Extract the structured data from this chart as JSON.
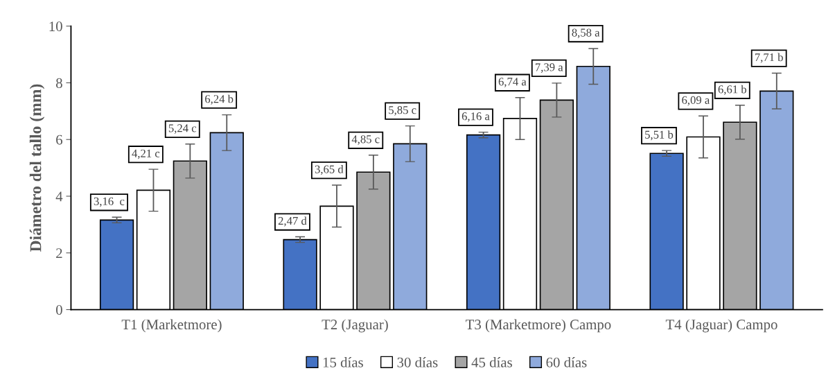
{
  "chart_data": {
    "type": "bar",
    "ylabel": "Diámetro del tallo (mm)",
    "categories": [
      "T1 (Marketmore)",
      "T2 (Jaguar)",
      "T3 (Marketmore) Campo",
      "T4 (Jaguar) Campo"
    ],
    "series": [
      {
        "name": "15 días",
        "color": "#4472c4",
        "values": [
          3.16,
          2.47,
          6.16,
          5.51
        ],
        "errors": [
          0.1,
          0.1,
          0.1,
          0.1
        ],
        "value_labels": [
          "3,16  c",
          "2,47 d",
          "6,16 a",
          "5,51 b"
        ]
      },
      {
        "name": "30 días",
        "color": "#ffffff",
        "values": [
          4.21,
          3.65,
          6.74,
          6.09
        ],
        "errors": [
          0.74,
          0.74,
          0.74,
          0.74
        ],
        "value_labels": [
          "4,21 c",
          "3,65 d",
          "6,74 a",
          "6,09 a"
        ]
      },
      {
        "name": "45 días",
        "color": "#a5a5a5",
        "values": [
          5.24,
          4.85,
          7.39,
          6.61
        ],
        "errors": [
          0.6,
          0.6,
          0.6,
          0.6
        ],
        "value_labels": [
          "5,24 c",
          "4,85 c",
          "7,39 a",
          "6,61 b"
        ]
      },
      {
        "name": "60 días",
        "color": "#8faadc",
        "values": [
          6.24,
          5.85,
          8.58,
          7.71
        ],
        "errors": [
          0.63,
          0.63,
          0.63,
          0.63
        ],
        "value_labels": [
          "6,24 b",
          "5,85 c",
          "8,58 a",
          "7,71 b"
        ]
      }
    ],
    "ylim": [
      0,
      10
    ],
    "yticks": [
      0,
      2,
      4,
      6,
      8,
      10
    ],
    "grid": false,
    "legend": "bottom"
  }
}
